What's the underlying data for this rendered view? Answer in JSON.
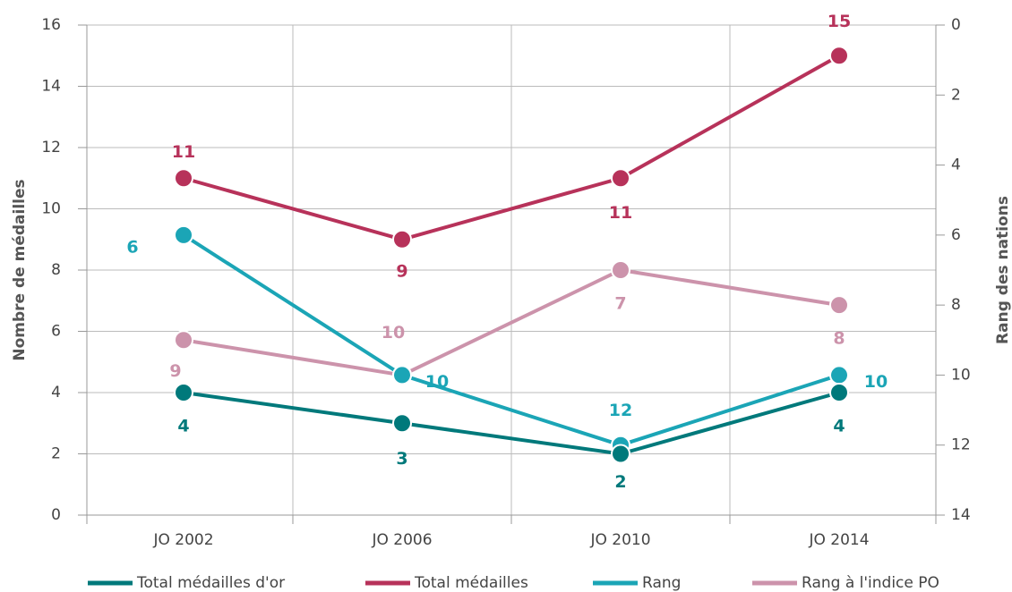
{
  "chart_data": {
    "type": "line",
    "categories": [
      "JO 2002",
      "JO 2006",
      "JO 2010",
      "JO 2014"
    ],
    "y_label": "Nombre de médailles",
    "y2_label": "Rang des nations",
    "ylim": [
      0,
      16
    ],
    "yticks": [
      0,
      2,
      4,
      6,
      8,
      10,
      12,
      14,
      16
    ],
    "y2lim": [
      0,
      14
    ],
    "y2ticks": [
      0,
      2,
      4,
      6,
      8,
      10,
      12,
      14
    ],
    "y2_reversed": true,
    "grid": true,
    "legend": "bottom",
    "series": [
      {
        "name": "Total médailles d'or",
        "color": "#00797b",
        "values": [
          4,
          3,
          2,
          4
        ]
      },
      {
        "name": "Total médailles",
        "color": "#b7325a",
        "values": [
          11,
          9,
          11,
          15
        ]
      },
      {
        "name": "Rang",
        "color": "#1ba5b6",
        "axis": "y2",
        "values": [
          6,
          10,
          12,
          10
        ]
      },
      {
        "name": "Rang à l'indice PO",
        "color": "#cc93ab",
        "axis": "y2",
        "values": [
          9,
          10,
          7,
          8
        ]
      }
    ]
  }
}
